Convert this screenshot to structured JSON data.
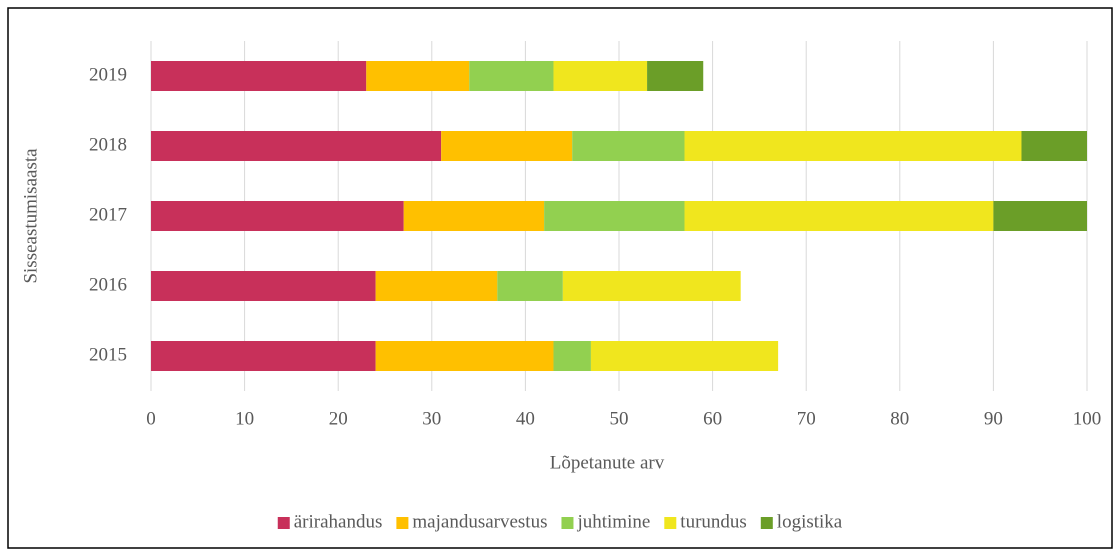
{
  "chart_data": {
    "type": "stacked_barh",
    "xlabel": "Lõpetanute arv",
    "ylabel": "Sisseastumisaasta",
    "categories": [
      "2015",
      "2016",
      "2017",
      "2018",
      "2019"
    ],
    "series": [
      {
        "name": "ärirahandus",
        "color": "#c8305a",
        "values": [
          24,
          24,
          27,
          31,
          23
        ]
      },
      {
        "name": "majandusarvestus",
        "color": "#ffc000",
        "values": [
          19,
          13,
          15,
          14,
          11
        ]
      },
      {
        "name": "juhtimine",
        "color": "#92d050",
        "values": [
          4,
          7,
          15,
          12,
          9
        ]
      },
      {
        "name": "turundus",
        "color": "#f0e61e",
        "values": [
          20,
          19,
          33,
          36,
          10
        ]
      },
      {
        "name": "logistika",
        "color": "#6b9e28",
        "values": [
          0,
          0,
          10,
          7,
          6
        ]
      }
    ],
    "xlim": [
      0,
      100
    ],
    "xticks": [
      0,
      10,
      20,
      30,
      40,
      50,
      60,
      70,
      80,
      90,
      100
    ],
    "grid": true,
    "legend": "bottom"
  }
}
